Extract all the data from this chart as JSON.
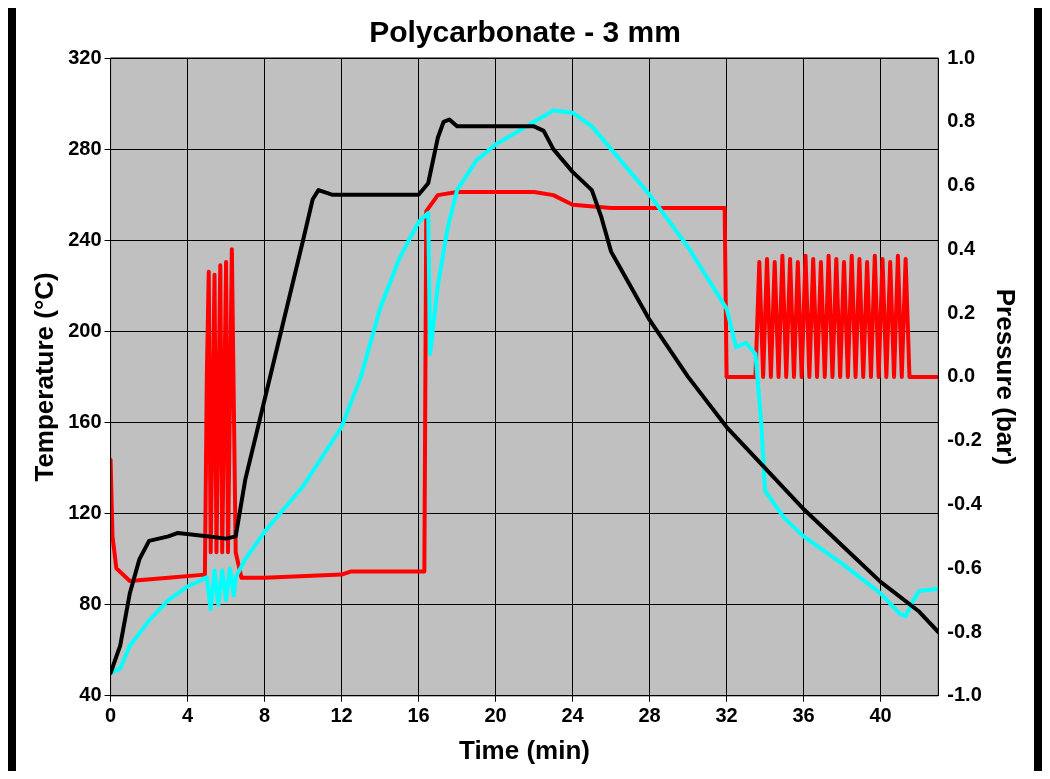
{
  "chart_data": {
    "type": "line",
    "title": "Polycarbonate - 3 mm",
    "xlabel": "Time (min)",
    "ylabel": "Temperature (°C)",
    "y2label": "Pressure (bar)",
    "xlim": [
      0,
      43
    ],
    "xticks": [
      0,
      4,
      8,
      12,
      16,
      20,
      24,
      28,
      32,
      36,
      40
    ],
    "ylim": [
      40,
      320
    ],
    "yticks": [
      40,
      80,
      120,
      160,
      200,
      240,
      280,
      320
    ],
    "y2lim": [
      -1,
      1
    ],
    "y2ticks": [
      {
        "value": -1,
        "label": "-1.0"
      },
      {
        "value": -0.8,
        "label": "-0.8"
      },
      {
        "value": -0.6,
        "label": "-0.6"
      },
      {
        "value": -0.4,
        "label": "-0.4"
      },
      {
        "value": -0.2,
        "label": "-0.2"
      },
      {
        "value": 0,
        "label": "0.0"
      },
      {
        "value": 0.2,
        "label": "0.2"
      },
      {
        "value": 0.4,
        "label": "0.4"
      },
      {
        "value": 0.6,
        "label": "0.6"
      },
      {
        "value": 0.8,
        "label": "0.8"
      },
      {
        "value": 1,
        "label": "1.0"
      }
    ],
    "grid": true,
    "legend": false,
    "marker": "none",
    "line_style": "solid",
    "series": [
      {
        "color": "#000000",
        "x": [
          0,
          0.5,
          1,
          1.5,
          2,
          3,
          3.5,
          5,
          6,
          6.5,
          7,
          8,
          9,
          10,
          10.5,
          10.8,
          11.5,
          14,
          16,
          16.5,
          17,
          17.3,
          17.6,
          18,
          20,
          22,
          22.5,
          23,
          24,
          25,
          25.5,
          26,
          28,
          30,
          32,
          34,
          36,
          38,
          40,
          42,
          43
        ],
        "values": [
          50,
          62,
          85,
          100,
          108,
          110,
          111.5,
          110,
          109,
          110,
          135,
          170,
          205,
          240,
          258,
          262,
          260,
          260,
          260,
          265,
          285,
          292,
          293,
          290,
          290,
          290,
          288,
          280,
          270,
          262,
          250,
          235,
          205,
          180,
          158,
          140,
          122,
          106,
          90,
          77,
          68
        ]
      },
      {
        "color": "#00ffff",
        "x": [
          0,
          0.5,
          1,
          2,
          3,
          4,
          5,
          5.2,
          5.4,
          5.6,
          5.8,
          6,
          6.2,
          6.4,
          6.5,
          7,
          8,
          10,
          12,
          13,
          14,
          15,
          16,
          16.5,
          16.6,
          17,
          17.5,
          18,
          19,
          20,
          22,
          23,
          24,
          25,
          26,
          28,
          30,
          32,
          32.5,
          33,
          33.5,
          33.8,
          34,
          35,
          36,
          38,
          40,
          41,
          41.3,
          41.7,
          42,
          43
        ],
        "values": [
          50,
          52,
          62,
          73,
          82,
          88,
          92,
          78,
          95,
          80,
          95,
          82,
          96,
          84,
          92,
          100,
          112,
          132,
          158,
          180,
          210,
          232,
          248,
          252,
          190,
          220,
          245,
          262,
          275,
          282,
          292,
          297,
          296,
          290,
          280,
          260,
          237,
          210,
          193,
          195,
          190,
          160,
          130,
          118,
          110,
          98,
          85,
          76,
          75,
          82,
          86,
          87
        ]
      },
      {
        "color": "#ff0000",
        "axis": "y2",
        "x": [
          0,
          0.1,
          0.3,
          1,
          3,
          4.9,
          5,
          5.1,
          5.2,
          5.4,
          5.5,
          5.7,
          5.8,
          6,
          6.1,
          6.3,
          6.5,
          6.8,
          8,
          12,
          12.5,
          16.3,
          16.4,
          17,
          18,
          22,
          23,
          24,
          26,
          31.9,
          32,
          33.5,
          33.7,
          33.9,
          34.1,
          34.3,
          34.5,
          34.7,
          34.9,
          35.1,
          35.3,
          35.5,
          35.7,
          35.9,
          36.1,
          36.3,
          36.5,
          36.7,
          36.9,
          37.1,
          37.3,
          37.5,
          37.7,
          37.9,
          38.1,
          38.3,
          38.5,
          38.7,
          38.9,
          39.1,
          39.3,
          39.5,
          39.7,
          39.9,
          40.1,
          40.3,
          40.5,
          40.7,
          40.9,
          41.1,
          41.3,
          41.5,
          41.6,
          43
        ],
        "values": [
          -0.26,
          -0.5,
          -0.6,
          -0.64,
          -0.63,
          -0.62,
          0,
          0.33,
          -0.55,
          0.32,
          -0.55,
          0.35,
          -0.55,
          0.36,
          -0.55,
          0.4,
          -0.55,
          -0.63,
          -0.63,
          -0.62,
          -0.61,
          -0.61,
          0.52,
          0.57,
          0.58,
          0.58,
          0.57,
          0.54,
          0.53,
          0.53,
          0,
          0,
          0.36,
          0,
          0.37,
          0,
          0.36,
          0,
          0.38,
          0,
          0.37,
          0,
          0.36,
          0,
          0.38,
          0,
          0.37,
          0,
          0.36,
          0,
          0.38,
          0,
          0.37,
          0,
          0.36,
          0,
          0.38,
          0,
          0.37,
          0,
          0.36,
          0,
          0.38,
          0,
          0.37,
          0,
          0.36,
          0,
          0.38,
          0,
          0.37,
          0,
          0,
          0
        ]
      }
    ]
  }
}
